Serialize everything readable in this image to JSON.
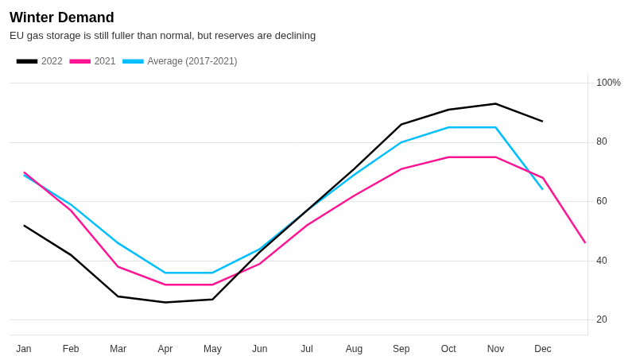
{
  "chart_data": {
    "type": "line",
    "title": "Winter Demand",
    "subtitle": "EU gas storage is still fuller than normal, but reserves are declining",
    "series": [
      {
        "name": "2022",
        "color": "#000000",
        "x": [
          0,
          1,
          2,
          3,
          4,
          5,
          6,
          7,
          8,
          9,
          10,
          11
        ],
        "values": [
          52,
          42,
          28,
          26,
          27,
          43,
          57,
          71,
          86,
          91,
          93,
          87
        ]
      },
      {
        "name": "2021",
        "color": "#ff1493",
        "x": [
          0,
          1,
          2,
          3,
          4,
          5,
          6,
          7,
          8,
          9,
          10,
          11,
          11.9
        ],
        "values": [
          70,
          57,
          38,
          32,
          32,
          39,
          52,
          62,
          71,
          75,
          75,
          68,
          46
        ]
      },
      {
        "name": "Average (2017-2021)",
        "color": "#00bfff",
        "x": [
          0,
          1,
          2,
          3,
          4,
          5,
          6,
          7,
          8,
          9,
          10,
          11
        ],
        "values": [
          69,
          59,
          46,
          36,
          36,
          44,
          57,
          69,
          80,
          85,
          85,
          64
        ]
      }
    ],
    "xlim": [
      -0.3,
      11.95
    ],
    "xticks": [
      {
        "value": 0,
        "label": "Jan"
      },
      {
        "value": 1,
        "label": "Feb"
      },
      {
        "value": 2,
        "label": "Mar"
      },
      {
        "value": 3,
        "label": "Apr"
      },
      {
        "value": 4,
        "label": "May"
      },
      {
        "value": 5,
        "label": "Jun"
      },
      {
        "value": 6,
        "label": "Jul"
      },
      {
        "value": 7,
        "label": "Aug"
      },
      {
        "value": 8,
        "label": "Sep"
      },
      {
        "value": 9,
        "label": "Oct"
      },
      {
        "value": 10,
        "label": "Nov"
      },
      {
        "value": 11,
        "label": "Dec"
      }
    ],
    "ylim": [
      15,
      103
    ],
    "yticks": [
      20,
      40,
      60,
      80,
      {
        "value": 100,
        "label": "100%"
      }
    ],
    "grid": "y",
    "legend": "top",
    "marker": "none"
  }
}
